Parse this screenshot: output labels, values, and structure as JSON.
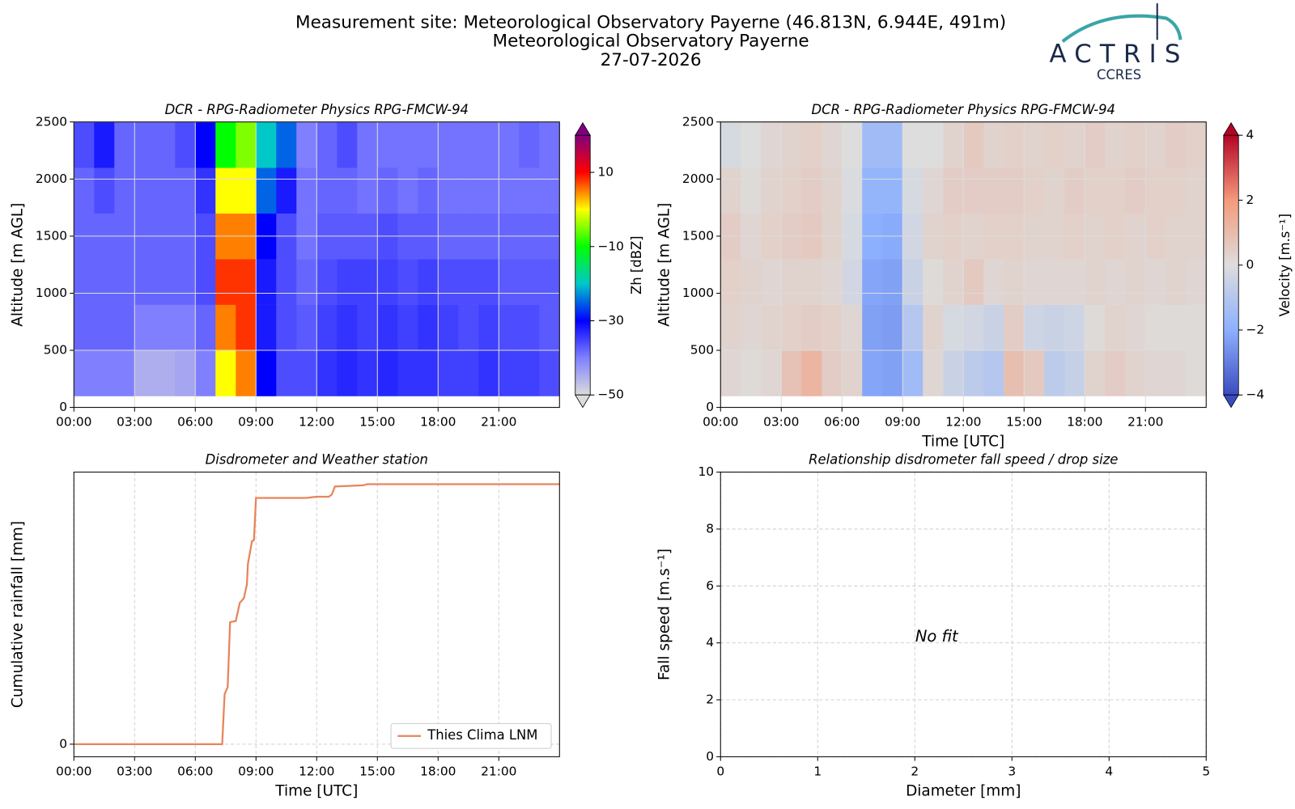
{
  "header": {
    "title": "Measurement site: Meteorological Observatory Payerne (46.813N, 6.944E, 491m)",
    "subtitle": "Meteorological Observatory Payerne",
    "date": "27-07-2026",
    "logo": "ACTRIS",
    "logo_sub": "CCRES"
  },
  "chart_data": [
    {
      "type": "heatmap",
      "title": "DCR - RPG-Radiometer Physics RPG-FMCW-94",
      "y_label": "Altitude [m AGL]",
      "x_bins": [
        0,
        1,
        2,
        3,
        4,
        5,
        6,
        7,
        8,
        9,
        10,
        11,
        12,
        13,
        14,
        15,
        16,
        17,
        18,
        19,
        20,
        21,
        22,
        23,
        24
      ],
      "y_bins": [
        100,
        500,
        900,
        1300,
        1700,
        2100,
        2500
      ],
      "values": [
        [
          -40,
          -38,
          -38,
          -38,
          -38,
          -36
        ],
        [
          -40,
          -38,
          -38,
          -38,
          -36,
          -32
        ],
        [
          -40,
          -38,
          -38,
          -38,
          -38,
          -38
        ],
        [
          -45,
          -40,
          -38,
          -38,
          -38,
          -38
        ],
        [
          -45,
          -40,
          -38,
          -38,
          -38,
          -38
        ],
        [
          -44,
          -40,
          -38,
          -38,
          -38,
          -36
        ],
        [
          -40,
          -38,
          -36,
          -36,
          -34,
          -30
        ],
        [
          0,
          5,
          8,
          5,
          0,
          -10
        ],
        [
          5,
          8,
          8,
          5,
          0,
          -5
        ],
        [
          -30,
          -32,
          -32,
          -30,
          -25,
          -20
        ],
        [
          -36,
          -36,
          -36,
          -36,
          -32,
          -25
        ],
        [
          -36,
          -37,
          -38,
          -39,
          -39,
          -40
        ],
        [
          -34,
          -35,
          -36,
          -37,
          -38,
          -38
        ],
        [
          -33,
          -34,
          -35,
          -37,
          -38,
          -36
        ],
        [
          -34,
          -35,
          -35,
          -37,
          -39,
          -39
        ],
        [
          -33,
          -34,
          -35,
          -36,
          -38,
          -39
        ],
        [
          -34,
          -35,
          -36,
          -37,
          -39,
          -39
        ],
        [
          -34,
          -34,
          -35,
          -37,
          -38,
          -39
        ],
        [
          -35,
          -35,
          -36,
          -38,
          -39,
          -39
        ],
        [
          -35,
          -36,
          -36,
          -38,
          -39,
          -39
        ],
        [
          -34,
          -35,
          -36,
          -38,
          -39,
          -39
        ],
        [
          -35,
          -36,
          -37,
          -38,
          -39,
          -39
        ],
        [
          -35,
          -36,
          -37,
          -38,
          -39,
          -38
        ],
        [
          -36,
          -37,
          -37,
          -38,
          -39,
          -39
        ]
      ],
      "xlim": [
        0,
        24
      ],
      "xticks": [
        {
          "value": 0,
          "label": "00:00"
        },
        {
          "value": 3,
          "label": "03:00"
        },
        {
          "value": 6,
          "label": "06:00"
        },
        {
          "value": 9,
          "label": "09:00"
        },
        {
          "value": 12,
          "label": "12:00"
        },
        {
          "value": 15,
          "label": "15:00"
        },
        {
          "value": 18,
          "label": "18:00"
        },
        {
          "value": 21,
          "label": "21:00"
        }
      ],
      "ylim": [
        0,
        2500
      ],
      "yticks": [
        0,
        500,
        1000,
        1500,
        2000,
        2500
      ],
      "grid": true,
      "colorbar": {
        "label": "Zh [dBZ]",
        "lim": [
          -50,
          20
        ],
        "ticks": [
          {
            "value": -50,
            "label": "−50"
          },
          {
            "value": -30,
            "label": "−30"
          },
          {
            "value": -10,
            "label": "−10"
          },
          10
        ],
        "colors": [
          "#dcdcdc",
          "#8080ff",
          "#0000ff",
          "#00c8c8",
          "#00ff00",
          "#ffff00",
          "#ff0000",
          "#800080"
        ]
      }
    },
    {
      "type": "heatmap",
      "title": "DCR - RPG-Radiometer Physics RPG-FMCW-94",
      "x_label": "Time [UTC]",
      "y_label": "Altitude [m AGL]",
      "x_bins": [
        0,
        1,
        2,
        3,
        4,
        5,
        6,
        7,
        8,
        9,
        10,
        11,
        12,
        13,
        14,
        15,
        16,
        17,
        18,
        19,
        20,
        21,
        22,
        23,
        24
      ],
      "y_bins": [
        100,
        500,
        900,
        1300,
        1700,
        2100,
        2500
      ],
      "values": [
        [
          0.2,
          0.3,
          0.4,
          0.5,
          0.3,
          -0.2
        ],
        [
          0.1,
          0.2,
          0.3,
          0.2,
          0.1,
          0
        ],
        [
          0.2,
          0.3,
          0.2,
          0.4,
          0.3,
          0.2
        ],
        [
          0.8,
          0.4,
          0.3,
          0.5,
          0.4,
          0.3
        ],
        [
          1.2,
          0.5,
          0.3,
          0.6,
          0.5,
          0.4
        ],
        [
          0.5,
          0.4,
          0.2,
          0.3,
          0.3,
          0.2
        ],
        [
          0.3,
          0.2,
          -0.3,
          -0.2,
          -0.1,
          0
        ],
        [
          -2.2,
          -2.3,
          -2.2,
          -2,
          -1.8,
          -1.5
        ],
        [
          -2.3,
          -2.4,
          -2.3,
          -2.1,
          -1.8,
          -1.5
        ],
        [
          -1.5,
          -1,
          -0.5,
          -0.3,
          -0.2,
          0
        ],
        [
          0.2,
          0.3,
          0.1,
          0.3,
          0.2,
          0
        ],
        [
          -0.5,
          -0.2,
          0.3,
          0.4,
          0.5,
          0.3
        ],
        [
          -0.8,
          -0.3,
          0.6,
          0.3,
          0.5,
          0.6
        ],
        [
          -1,
          -0.5,
          0.2,
          0.4,
          0.5,
          0.3
        ],
        [
          0.9,
          0.5,
          0.3,
          0.4,
          0.5,
          0.4
        ],
        [
          0.6,
          -0.4,
          0.2,
          0.3,
          0.4,
          0.3
        ],
        [
          -0.8,
          -0.5,
          0.2,
          0.3,
          0.3,
          0.4
        ],
        [
          -0.6,
          -0.4,
          0.2,
          0.4,
          0.5,
          0.3
        ],
        [
          0.3,
          0.1,
          0.3,
          0.3,
          0.4,
          0.5
        ],
        [
          0.5,
          0.3,
          0.2,
          0.4,
          0.4,
          0.3
        ],
        [
          0.3,
          0.2,
          0.3,
          0.3,
          0.5,
          0.4
        ],
        [
          0.2,
          0.1,
          0.2,
          0.4,
          0.4,
          0.3
        ],
        [
          0.2,
          0.1,
          0.3,
          0.3,
          0.4,
          0.5
        ],
        [
          0.1,
          0.1,
          0.2,
          0.3,
          0.3,
          0.4
        ]
      ],
      "xlim": [
        0,
        24
      ],
      "xticks": [
        {
          "value": 0,
          "label": "00:00"
        },
        {
          "value": 3,
          "label": "03:00"
        },
        {
          "value": 6,
          "label": "06:00"
        },
        {
          "value": 9,
          "label": "09:00"
        },
        {
          "value": 12,
          "label": "12:00"
        },
        {
          "value": 15,
          "label": "15:00"
        },
        {
          "value": 18,
          "label": "18:00"
        },
        {
          "value": 21,
          "label": "21:00"
        }
      ],
      "ylim": [
        0,
        2500
      ],
      "yticks": [
        0,
        500,
        1000,
        1500,
        2000,
        2500
      ],
      "grid": true,
      "colorbar": {
        "label": "Velocity [m.s⁻¹]",
        "lim": [
          -4,
          4
        ],
        "ticks": [
          {
            "value": -4,
            "label": "−4"
          },
          {
            "value": -2,
            "label": "−2"
          },
          0,
          2,
          4
        ],
        "colors": [
          "#3b4cc0",
          "#8db0fe",
          "#dddddd",
          "#f49a7b",
          "#b40426"
        ]
      }
    },
    {
      "type": "line",
      "title": "Disdrometer and Weather station",
      "x_label": "Time [UTC]",
      "y_label": "Cumulative rainfall [mm]",
      "x": [
        0,
        7.33,
        7.45,
        7.6,
        7.72,
        8.0,
        8.05,
        8.2,
        8.4,
        8.55,
        8.6,
        8.8,
        8.9,
        9.0,
        11.5,
        12.0,
        12.6,
        12.75,
        12.9,
        14.3,
        14.5,
        24
      ],
      "series": [
        {
          "name": "Thies Clima LNM",
          "color": "#e8845a",
          "values": [
            0,
            0,
            2.2,
            2.5,
            5.35,
            5.4,
            5.6,
            6.2,
            6.4,
            7.0,
            7.9,
            8.9,
            8.95,
            10.8,
            10.8,
            10.85,
            10.85,
            10.95,
            11.3,
            11.35,
            11.4,
            11.4
          ]
        }
      ],
      "xlim": [
        0,
        24
      ],
      "xticks": [
        {
          "value": 0,
          "label": "00:00"
        },
        {
          "value": 3,
          "label": "03:00"
        },
        {
          "value": 6,
          "label": "06:00"
        },
        {
          "value": 9,
          "label": "09:00"
        },
        {
          "value": 12,
          "label": "12:00"
        },
        {
          "value": 15,
          "label": "15:00"
        },
        {
          "value": 18,
          "label": "18:00"
        },
        {
          "value": 21,
          "label": "21:00"
        }
      ],
      "ylim": [
        -0.55,
        11.93
      ],
      "yticks": [
        0
      ],
      "grid": true,
      "grid_style": "dashed",
      "legend": "lower right"
    },
    {
      "type": "scatter",
      "title": "Relationship disdrometer fall speed / drop size",
      "x_label": "Diameter [mm]",
      "y_label": "Fall speed [m.s⁻¹]",
      "xlim": [
        0,
        5
      ],
      "xticks": [
        0,
        1,
        2,
        3,
        4,
        5
      ],
      "ylim": [
        0,
        10
      ],
      "yticks": [
        0,
        2,
        4,
        6,
        8,
        10
      ],
      "grid": true,
      "grid_style": "dashed",
      "annotation": "No fit"
    }
  ]
}
